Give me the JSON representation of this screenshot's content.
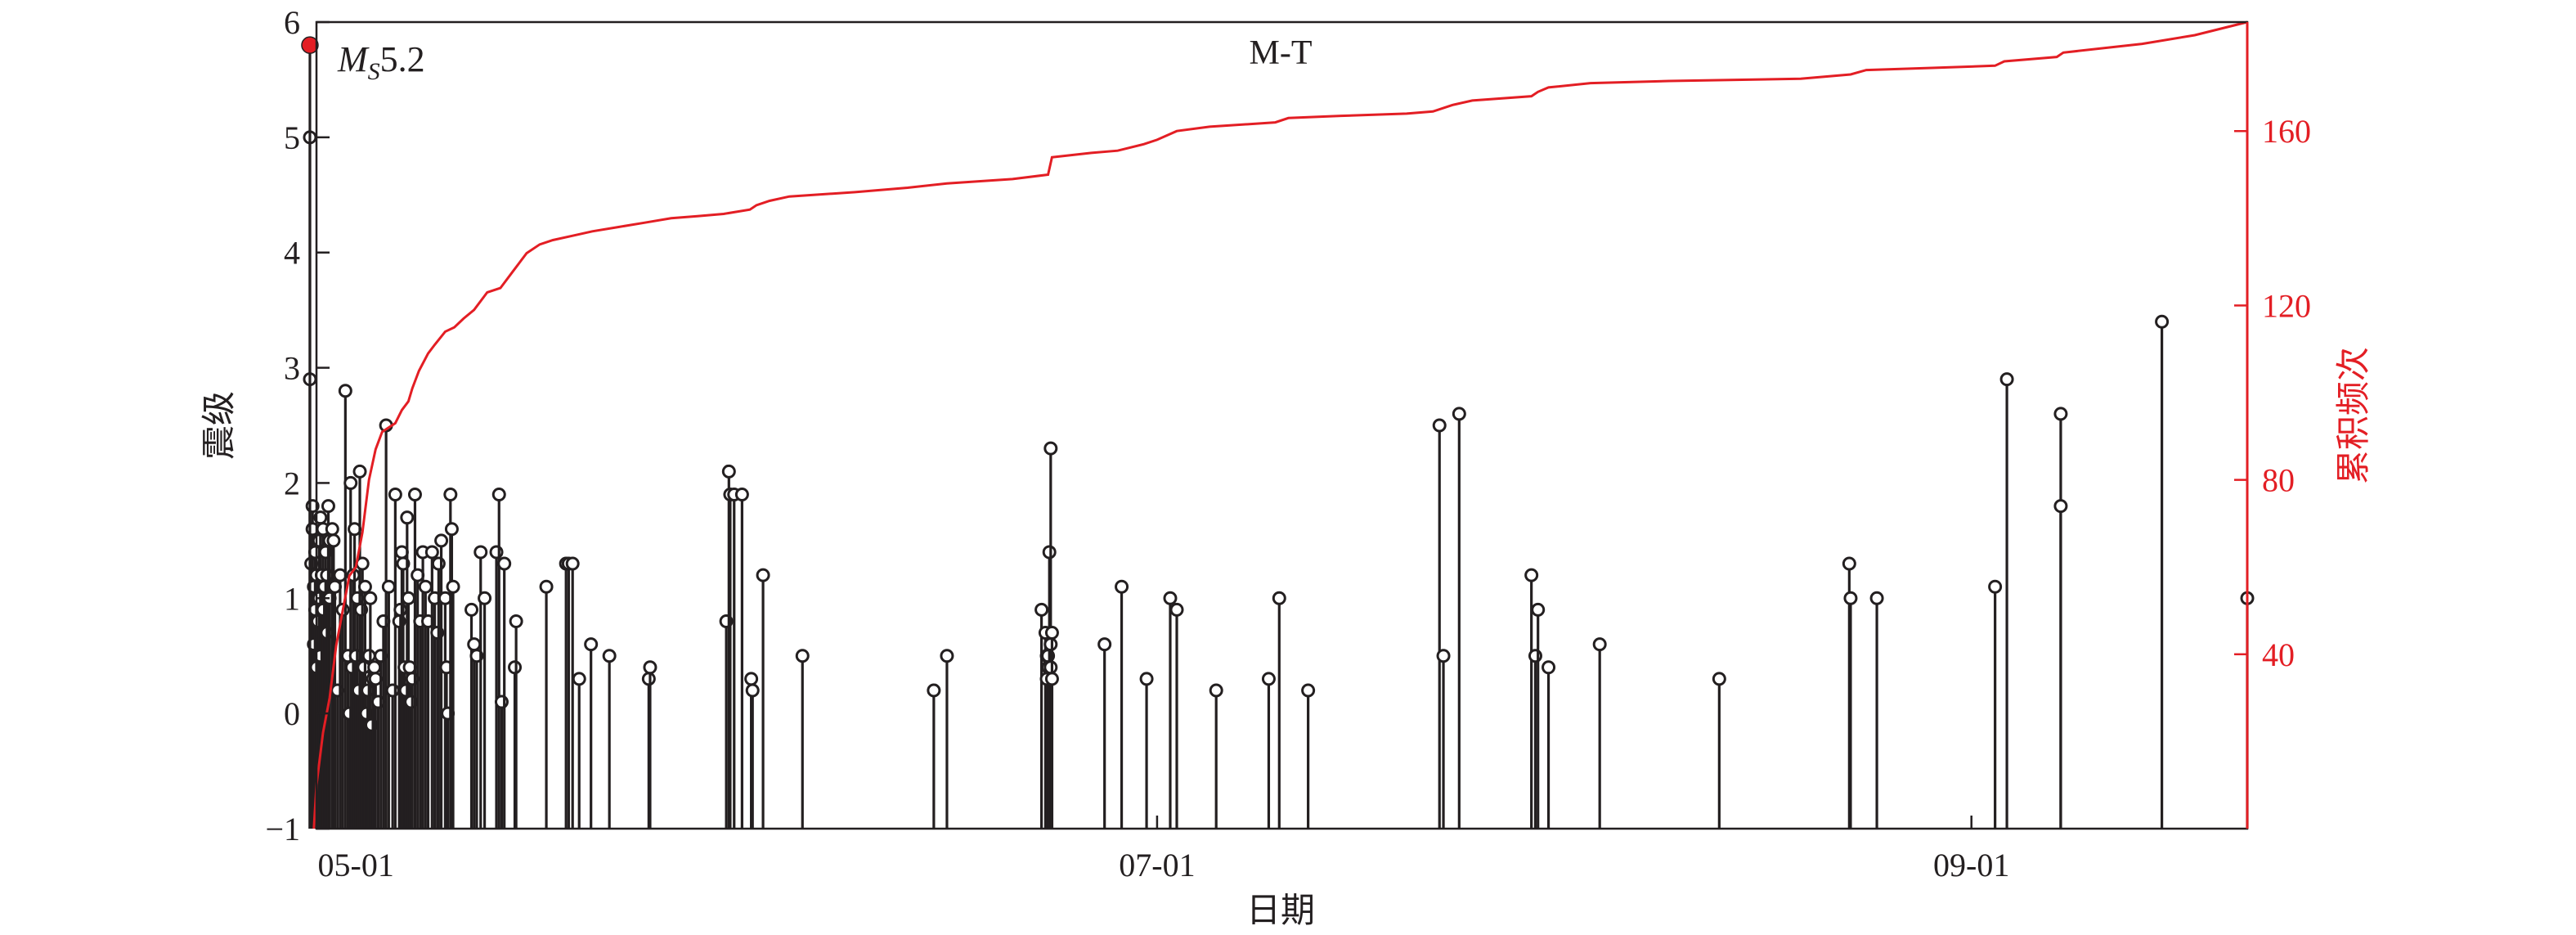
{
  "chart_data": {
    "type": "stem",
    "title": "M-T",
    "xlabel": "日期",
    "ylabel": "震级",
    "y2label": "累积频次",
    "xlim": [
      -3,
      144
    ],
    "ylim": [
      -1,
      6
    ],
    "y2lim": [
      0,
      185
    ],
    "x_ticks": [
      {
        "day": 0,
        "label": "05-01"
      },
      {
        "day": 61,
        "label": "07-01"
      },
      {
        "day": 123,
        "label": "09-01"
      }
    ],
    "y_ticks": [
      -1,
      0,
      1,
      2,
      3,
      4,
      5,
      6
    ],
    "y2_ticks": [
      40,
      80,
      120,
      160
    ],
    "mainshock": {
      "day": -3.5,
      "magnitude": 5.8,
      "label_prefix": "M",
      "label_subscript": "S",
      "label_value": "5.2",
      "color": "#e31e24"
    },
    "series": [
      {
        "name": "震级",
        "color": "#231f20",
        "points": [
          [
            -3.5,
            5.0
          ],
          [
            -3.5,
            2.9
          ],
          [
            -3.4,
            1.3
          ],
          [
            -3.3,
            1.8
          ],
          [
            -3.3,
            1.6
          ],
          [
            -3.2,
            1.1
          ],
          [
            -3.2,
            0.6
          ],
          [
            -3.1,
            1.4
          ],
          [
            -3.1,
            0.9
          ],
          [
            -3.0,
            0.4
          ],
          [
            -3.0,
            1.2
          ],
          [
            -2.9,
            0.8
          ],
          [
            -2.8,
            1.5
          ],
          [
            -2.8,
            1.0
          ],
          [
            -2.7,
            1.7
          ],
          [
            -2.7,
            0.5
          ],
          [
            -2.6,
            1.2
          ],
          [
            -2.5,
            1.6
          ],
          [
            -2.5,
            0.9
          ],
          [
            -2.4,
            1.1
          ],
          [
            -2.3,
            1.4
          ],
          [
            -2.2,
            0.7
          ],
          [
            -2.2,
            1.2
          ],
          [
            -2.1,
            1.8
          ],
          [
            -2.0,
            1.5
          ],
          [
            -2.0,
            1.0
          ],
          [
            -1.8,
            1.6
          ],
          [
            -1.7,
            1.5
          ],
          [
            -1.6,
            1.1
          ],
          [
            -1.4,
            0.2
          ],
          [
            -1.2,
            1.2
          ],
          [
            -1.0,
            0.9
          ],
          [
            -0.8,
            2.8
          ],
          [
            -0.6,
            0.5
          ],
          [
            -0.5,
            0.0
          ],
          [
            -0.4,
            2.0
          ],
          [
            -0.3,
            0.4
          ],
          [
            -0.2,
            1.2
          ],
          [
            -0.1,
            1.6
          ],
          [
            0.0,
            0.5
          ],
          [
            0.1,
            1.0
          ],
          [
            0.2,
            0.2
          ],
          [
            0.3,
            2.1
          ],
          [
            0.4,
            0.9
          ],
          [
            0.5,
            1.3
          ],
          [
            0.6,
            0.4
          ],
          [
            0.7,
            1.1
          ],
          [
            0.8,
            0.0
          ],
          [
            0.9,
            0.2
          ],
          [
            1.0,
            0.5
          ],
          [
            1.1,
            1.0
          ],
          [
            1.2,
            -0.1
          ],
          [
            1.3,
            0.3
          ],
          [
            1.4,
            0.4
          ],
          [
            1.5,
            0.3
          ],
          [
            1.7,
            0.1
          ],
          [
            1.9,
            0.5
          ],
          [
            2.1,
            0.8
          ],
          [
            2.3,
            2.5
          ],
          [
            2.5,
            1.1
          ],
          [
            2.8,
            0.2
          ],
          [
            3.0,
            1.9
          ],
          [
            3.3,
            0.8
          ],
          [
            3.4,
            0.9
          ],
          [
            3.5,
            1.4
          ],
          [
            3.6,
            1.3
          ],
          [
            3.7,
            0.4
          ],
          [
            3.8,
            0.2
          ],
          [
            3.9,
            1.7
          ],
          [
            4.0,
            1.0
          ],
          [
            4.1,
            0.4
          ],
          [
            4.2,
            0.1
          ],
          [
            4.3,
            0.3
          ],
          [
            4.5,
            1.9
          ],
          [
            4.7,
            1.2
          ],
          [
            4.9,
            0.8
          ],
          [
            5.1,
            1.4
          ],
          [
            5.3,
            1.1
          ],
          [
            5.5,
            0.8
          ],
          [
            5.8,
            1.4
          ],
          [
            6.0,
            1.0
          ],
          [
            6.2,
            0.7
          ],
          [
            6.3,
            1.3
          ],
          [
            6.5,
            1.5
          ],
          [
            6.8,
            1.0
          ],
          [
            6.9,
            0.4
          ],
          [
            7.0,
            0.0
          ],
          [
            7.2,
            1.9
          ],
          [
            7.3,
            1.6
          ],
          [
            7.4,
            1.1
          ],
          [
            8.8,
            0.9
          ],
          [
            9.0,
            0.6
          ],
          [
            9.2,
            0.5
          ],
          [
            9.5,
            1.4
          ],
          [
            9.8,
            1.0
          ],
          [
            10.7,
            1.4
          ],
          [
            10.9,
            1.9
          ],
          [
            11.1,
            0.1
          ],
          [
            11.3,
            1.3
          ],
          [
            12.1,
            0.4
          ],
          [
            12.2,
            0.8
          ],
          [
            14.5,
            1.1
          ],
          [
            16.0,
            1.3
          ],
          [
            16.2,
            1.3
          ],
          [
            16.5,
            1.3
          ],
          [
            17.0,
            0.3
          ],
          [
            17.9,
            0.6
          ],
          [
            19.3,
            0.5
          ],
          [
            22.3,
            0.3
          ],
          [
            22.4,
            0.4
          ],
          [
            28.2,
            0.8
          ],
          [
            28.4,
            2.1
          ],
          [
            28.5,
            1.9
          ],
          [
            28.8,
            1.9
          ],
          [
            29.4,
            1.9
          ],
          [
            30.1,
            0.3
          ],
          [
            30.2,
            0.2
          ],
          [
            31.0,
            1.2
          ],
          [
            34.0,
            0.5
          ],
          [
            44.0,
            0.2
          ],
          [
            45.0,
            0.5
          ],
          [
            52.2,
            0.9
          ],
          [
            52.5,
            0.7
          ],
          [
            52.6,
            0.5
          ],
          [
            52.6,
            0.3
          ],
          [
            52.7,
            0.5
          ],
          [
            52.7,
            0.4
          ],
          [
            52.8,
            1.4
          ],
          [
            52.9,
            2.3
          ],
          [
            52.9,
            0.6
          ],
          [
            52.9,
            0.4
          ],
          [
            53.0,
            0.7
          ],
          [
            53.0,
            0.3
          ],
          [
            57.0,
            0.6
          ],
          [
            58.3,
            1.1
          ],
          [
            60.2,
            0.3
          ],
          [
            62.0,
            1.0
          ],
          [
            62.5,
            0.9
          ],
          [
            65.5,
            0.2
          ],
          [
            69.5,
            0.3
          ],
          [
            70.3,
            1.0
          ],
          [
            72.5,
            0.2
          ],
          [
            82.5,
            2.5
          ],
          [
            82.8,
            0.5
          ],
          [
            84.0,
            2.6
          ],
          [
            89.5,
            1.2
          ],
          [
            89.8,
            0.5
          ],
          [
            90.0,
            0.9
          ],
          [
            90.8,
            0.4
          ],
          [
            94.7,
            0.6
          ],
          [
            103.8,
            0.3
          ],
          [
            113.7,
            1.3
          ],
          [
            113.8,
            1.0
          ],
          [
            115.8,
            1.0
          ],
          [
            124.8,
            1.1
          ],
          [
            125.7,
            2.9
          ],
          [
            129.8,
            2.6
          ],
          [
            129.8,
            1.8
          ],
          [
            137.5,
            3.4
          ],
          [
            144.0,
            1.0
          ]
        ]
      },
      {
        "name": "累积频次",
        "color": "#e31e24",
        "cumulative": [
          [
            -3.2,
            0
          ],
          [
            -3.0,
            10
          ],
          [
            -2.5,
            22
          ],
          [
            -2.0,
            30
          ],
          [
            -1.5,
            42
          ],
          [
            -1.0,
            50
          ],
          [
            -0.5,
            58
          ],
          [
            0.0,
            60
          ],
          [
            0.5,
            68
          ],
          [
            1.0,
            80
          ],
          [
            1.5,
            87
          ],
          [
            2.0,
            91
          ],
          [
            3.0,
            93
          ],
          [
            3.5,
            96
          ],
          [
            4.0,
            98
          ],
          [
            4.3,
            101
          ],
          [
            4.8,
            105
          ],
          [
            5.5,
            109
          ],
          [
            6.0,
            111
          ],
          [
            6.8,
            114
          ],
          [
            7.5,
            115
          ],
          [
            8.2,
            117
          ],
          [
            9.0,
            119
          ],
          [
            10.0,
            123
          ],
          [
            11.0,
            124
          ],
          [
            12.0,
            128
          ],
          [
            13.0,
            132
          ],
          [
            14.0,
            134
          ],
          [
            15.0,
            135
          ],
          [
            16.5,
            136
          ],
          [
            18.0,
            137
          ],
          [
            20.0,
            138
          ],
          [
            22.0,
            139
          ],
          [
            24.0,
            140
          ],
          [
            26.0,
            140.5
          ],
          [
            28.0,
            141
          ],
          [
            30.0,
            142
          ],
          [
            30.5,
            143
          ],
          [
            31.5,
            144
          ],
          [
            33.0,
            145
          ],
          [
            38.0,
            146
          ],
          [
            42.0,
            147
          ],
          [
            45.0,
            148
          ],
          [
            50.0,
            149
          ],
          [
            52.7,
            150
          ],
          [
            53.0,
            154
          ],
          [
            56.0,
            155
          ],
          [
            58.0,
            155.5
          ],
          [
            60.0,
            157
          ],
          [
            61.0,
            158
          ],
          [
            62.5,
            160
          ],
          [
            65.0,
            161
          ],
          [
            70.0,
            162
          ],
          [
            71.0,
            163
          ],
          [
            75.0,
            163.5
          ],
          [
            80.0,
            164
          ],
          [
            82.0,
            164.5
          ],
          [
            83.5,
            166
          ],
          [
            85.0,
            167
          ],
          [
            89.5,
            168
          ],
          [
            90.0,
            169
          ],
          [
            90.8,
            170
          ],
          [
            94.0,
            171
          ],
          [
            100.0,
            171.5
          ],
          [
            110.0,
            172
          ],
          [
            113.8,
            173
          ],
          [
            115.0,
            174
          ],
          [
            120.0,
            174.5
          ],
          [
            124.8,
            175
          ],
          [
            125.5,
            176
          ],
          [
            129.5,
            177
          ],
          [
            130.0,
            178
          ],
          [
            136.0,
            180
          ],
          [
            140.0,
            182
          ],
          [
            144.0,
            185
          ]
        ]
      }
    ]
  }
}
